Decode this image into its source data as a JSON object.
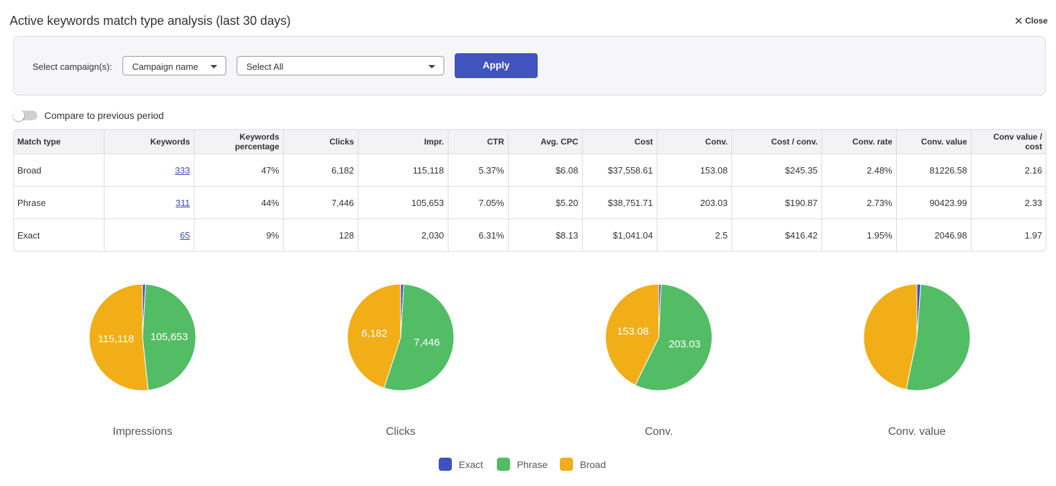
{
  "header": {
    "title": "Active keywords match type analysis (last 30 days)",
    "close": "Close"
  },
  "filter": {
    "label": "Select campaign(s):",
    "campaign_field": "Campaign name",
    "campaign_select": "Select All",
    "apply": "Apply"
  },
  "toggle": {
    "label": "Compare to previous period"
  },
  "table": {
    "headers": [
      "Match type",
      "Keywords",
      "Keywords percentage",
      "Clicks",
      "Impr.",
      "CTR",
      "Avg. CPC",
      "Cost",
      "Conv.",
      "Cost / conv.",
      "Conv. rate",
      "Conv. value",
      "Conv value / cost"
    ],
    "rows": [
      [
        "Broad",
        "333",
        "47%",
        "6,182",
        "115,118",
        "5.37%",
        "$6.08",
        "$37,558.61",
        "153.08",
        "$245.35",
        "2.48%",
        "81226.58",
        "2.16"
      ],
      [
        "Phrase",
        "311",
        "44%",
        "7,446",
        "105,653",
        "7.05%",
        "$5.20",
        "$38,751.71",
        "203.03",
        "$190.87",
        "2.73%",
        "90423.99",
        "2.33"
      ],
      [
        "Exact",
        "65",
        "9%",
        "128",
        "2,030",
        "6.31%",
        "$8.13",
        "$1,041.04",
        "2.5",
        "$416.42",
        "1.95%",
        "2046.98",
        "1.97"
      ]
    ]
  },
  "chart_data": [
    {
      "type": "pie",
      "title": "Impressions",
      "categories": [
        "Exact",
        "Phrase",
        "Broad"
      ],
      "colors": [
        "#4052bd",
        "#53bd65",
        "#f2ae17"
      ],
      "values": [
        2030,
        105653,
        115118
      ],
      "value_labels": [
        null,
        "105,653",
        "115,118"
      ]
    },
    {
      "type": "pie",
      "title": "Clicks",
      "categories": [
        "Exact",
        "Phrase",
        "Broad"
      ],
      "colors": [
        "#4052bd",
        "#53bd65",
        "#f2ae17"
      ],
      "values": [
        128,
        7446,
        6182
      ],
      "value_labels": [
        null,
        "7,446",
        "6,182"
      ]
    },
    {
      "type": "pie",
      "title": "Conv.",
      "categories": [
        "Exact",
        "Phrase",
        "Broad"
      ],
      "colors": [
        "#4052bd",
        "#53bd65",
        "#f2ae17"
      ],
      "values": [
        2.5,
        203.03,
        153.08
      ],
      "value_labels": [
        null,
        "203.03",
        "153.08"
      ]
    },
    {
      "type": "pie",
      "title": "Conv. value",
      "categories": [
        "Exact",
        "Phrase",
        "Broad"
      ],
      "colors": [
        "#4052bd",
        "#53bd65",
        "#f2ae17"
      ],
      "values": [
        2046.98,
        90423.99,
        81226.58
      ]
    }
  ]
}
